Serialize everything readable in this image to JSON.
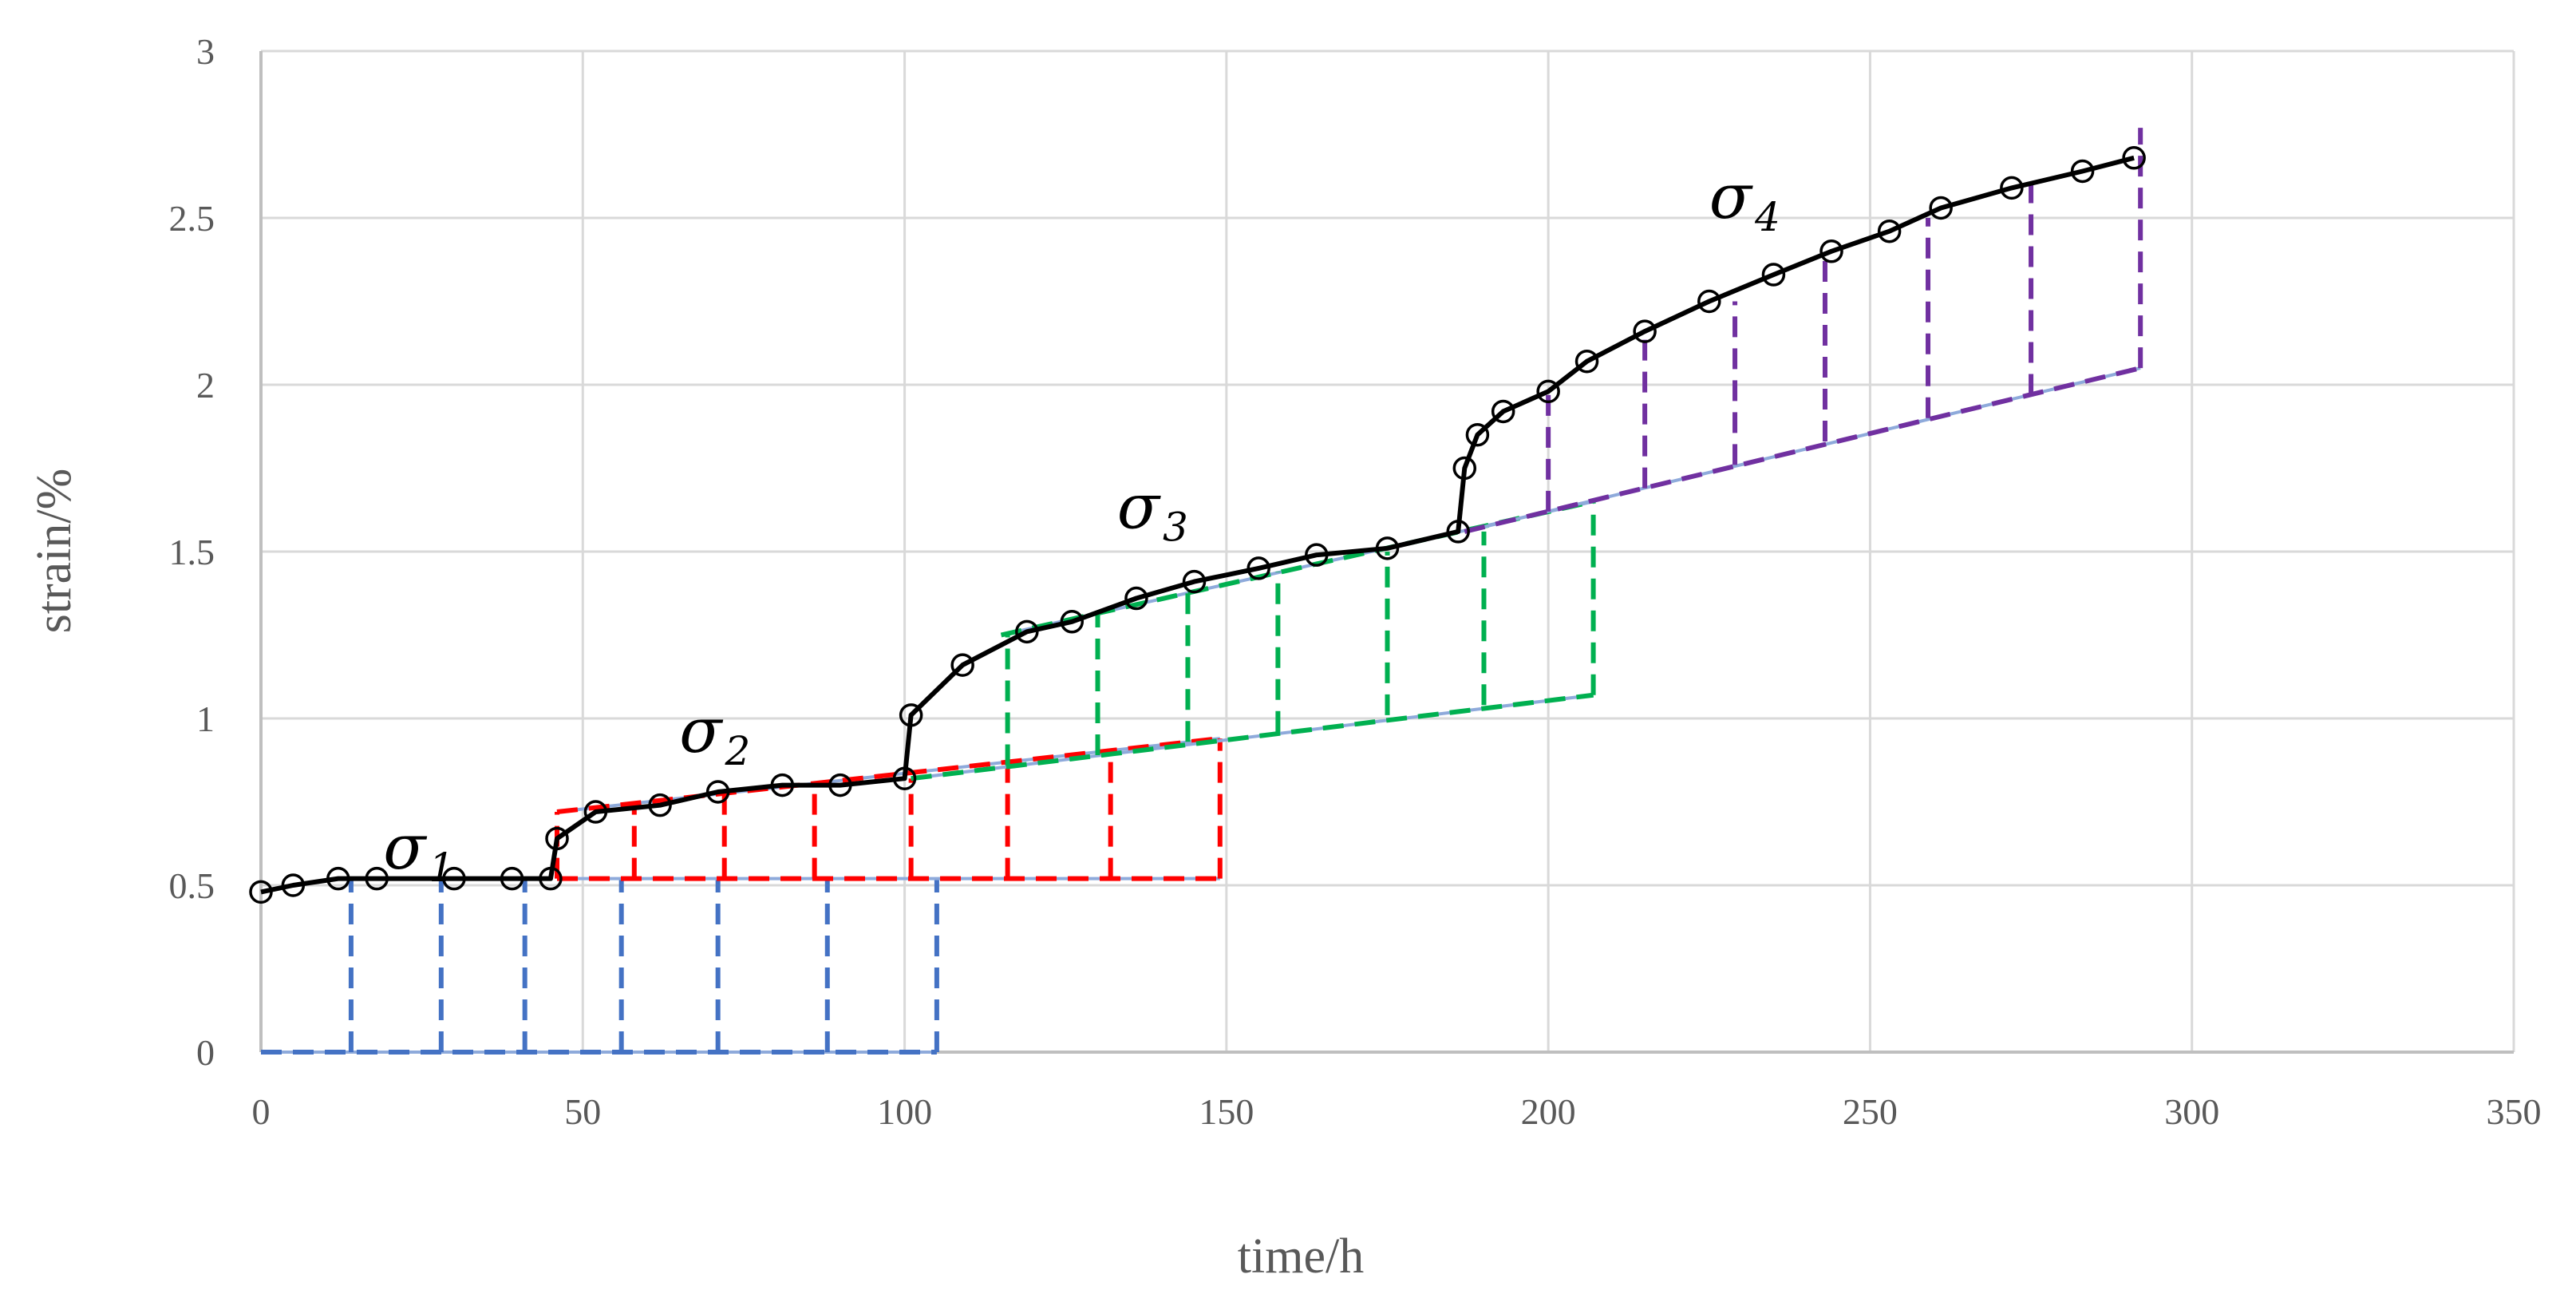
{
  "chart_data": {
    "type": "line",
    "title": "",
    "xlabel": "time/h",
    "ylabel": "strain/%",
    "xlim": [
      0,
      350
    ],
    "ylim": [
      0,
      3
    ],
    "x_ticks": [
      0,
      50,
      100,
      150,
      200,
      250,
      300,
      350
    ],
    "y_ticks": [
      0,
      0.5,
      1,
      1.5,
      2,
      2.5,
      3
    ],
    "x_tick_labels": [
      "0",
      "50",
      "100",
      "150",
      "200",
      "250",
      "300",
      "350"
    ],
    "y_tick_labels": [
      "0",
      "0.5",
      "1",
      "1.5",
      "2",
      "2.5",
      "3"
    ],
    "grid": true,
    "legend": "none",
    "annotations": [
      {
        "symbol": "σ",
        "subscript": "1",
        "x": 19,
        "y": 0.55
      },
      {
        "symbol": "σ",
        "subscript": "2",
        "x": 65,
        "y": 0.9
      },
      {
        "symbol": "σ",
        "subscript": "3",
        "x": 133,
        "y": 1.57
      },
      {
        "symbol": "σ",
        "subscript": "4",
        "x": 225,
        "y": 2.5
      }
    ],
    "series": [
      {
        "color": "#000000",
        "style": "solid-with-circle-markers",
        "points": [
          [
            0,
            0.48
          ],
          [
            5,
            0.5
          ],
          [
            12,
            0.52
          ],
          [
            18,
            0.52
          ],
          [
            30,
            0.52
          ],
          [
            39,
            0.52
          ],
          [
            45,
            0.52
          ],
          [
            46,
            0.64
          ],
          [
            52,
            0.72
          ],
          [
            62,
            0.74
          ],
          [
            71,
            0.78
          ],
          [
            81,
            0.8
          ],
          [
            90,
            0.8
          ],
          [
            100,
            0.82
          ],
          [
            101,
            1.01
          ],
          [
            109,
            1.16
          ],
          [
            119,
            1.26
          ],
          [
            126,
            1.29
          ],
          [
            136,
            1.36
          ],
          [
            145,
            1.41
          ],
          [
            155,
            1.45
          ],
          [
            164,
            1.49
          ],
          [
            175,
            1.51
          ],
          [
            186,
            1.56
          ],
          [
            187,
            1.75
          ],
          [
            189,
            1.85
          ],
          [
            193,
            1.92
          ],
          [
            200,
            1.98
          ],
          [
            206,
            2.07
          ],
          [
            215,
            2.16
          ],
          [
            225,
            2.25
          ],
          [
            235,
            2.33
          ],
          [
            244,
            2.4
          ],
          [
            253,
            2.46
          ],
          [
            261,
            2.53
          ],
          [
            272,
            2.59
          ],
          [
            283,
            2.64
          ],
          [
            291,
            2.68
          ]
        ]
      },
      {
        "color": "#4472c4",
        "style": "dashed-decomposition",
        "baseline": {
          "from": [
            0,
            0
          ],
          "to": [
            105,
            0
          ]
        },
        "verticals": [
          [
            14,
            0,
            0.52
          ],
          [
            28,
            0,
            0.52
          ],
          [
            41,
            0,
            0.52
          ],
          [
            56,
            0,
            0.52
          ],
          [
            71,
            0,
            0.52
          ],
          [
            88,
            0,
            0.52
          ],
          [
            105,
            0,
            0.52
          ]
        ]
      },
      {
        "color": "#ff0000",
        "style": "dashed-decomposition",
        "baseline": {
          "from": [
            46,
            0.52
          ],
          "to": [
            149,
            0.52
          ]
        },
        "upper": {
          "from": [
            46,
            0.72
          ],
          "to": [
            149,
            0.94
          ]
        },
        "verticals": [
          [
            46,
            0.52,
            0.72
          ],
          [
            58,
            0.52,
            0.74
          ],
          [
            72,
            0.52,
            0.78
          ],
          [
            86,
            0.52,
            0.8
          ],
          [
            101,
            0.52,
            0.82
          ],
          [
            116,
            0.52,
            0.87
          ],
          [
            132,
            0.52,
            0.9
          ],
          [
            149,
            0.52,
            0.94
          ]
        ]
      },
      {
        "color": "#00b050",
        "style": "dashed-decomposition",
        "baseline": {
          "from": [
            101,
            0.82
          ],
          "to": [
            207,
            1.07
          ]
        },
        "upper": {
          "from": [
            115,
            1.25
          ],
          "to": [
            207,
            1.65
          ]
        },
        "verticals": [
          [
            116,
            0.86,
            1.25
          ],
          [
            130,
            0.89,
            1.31
          ],
          [
            144,
            0.93,
            1.39
          ],
          [
            158,
            0.96,
            1.44
          ],
          [
            175,
            1.01,
            1.5
          ],
          [
            190,
            1.04,
            1.56
          ],
          [
            207,
            1.07,
            1.65
          ]
        ]
      },
      {
        "color": "#7030a0",
        "style": "dashed-decomposition",
        "baseline": {
          "from": [
            187,
            1.56
          ],
          "to": [
            292,
            2.05
          ]
        },
        "verticals": [
          [
            200,
            1.62,
            1.98
          ],
          [
            215,
            1.69,
            2.15
          ],
          [
            229,
            1.76,
            2.25
          ],
          [
            243,
            1.83,
            2.39
          ],
          [
            259,
            1.9,
            2.5
          ],
          [
            275,
            1.97,
            2.6
          ],
          [
            292,
            2.05,
            2.77
          ]
        ]
      }
    ]
  }
}
